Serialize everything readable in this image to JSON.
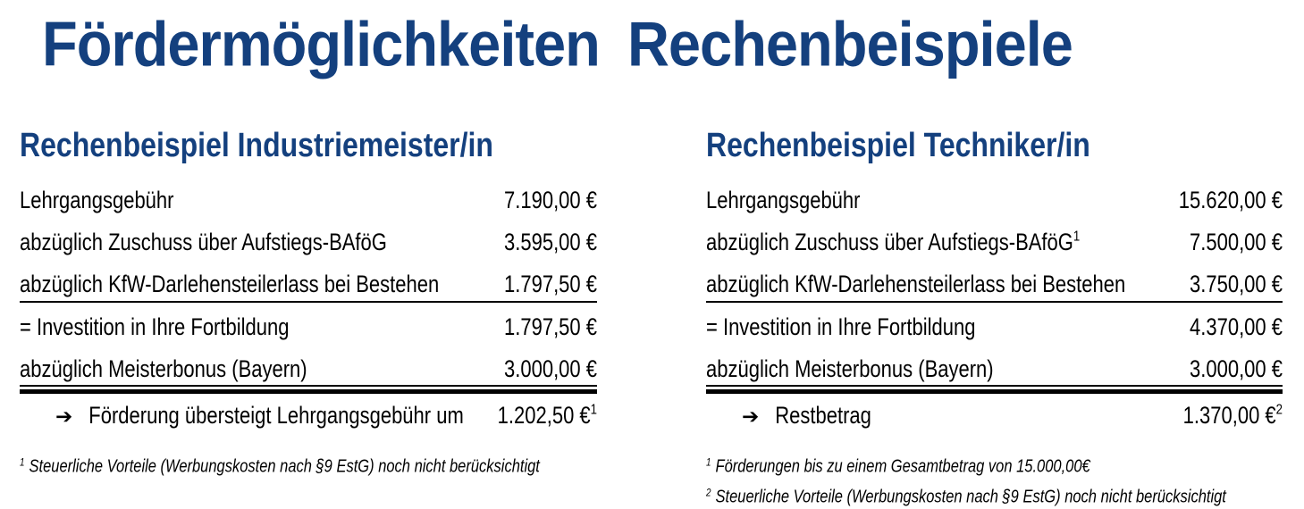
{
  "title": "Fördermöglichkeiten Rechenbeispiele",
  "colors": {
    "heading": "#14407e",
    "text": "#000000",
    "rule": "#000000",
    "background": "#ffffff"
  },
  "icons": {
    "arrow": "➔"
  },
  "examples": {
    "left": {
      "heading": "Rechenbeispiel Industriemeister/in",
      "rows": [
        {
          "label": "Lehrgangsgebühr",
          "label_sup": "",
          "value": "7.190,00 €",
          "value_sup": ""
        },
        {
          "label": "abzüglich Zuschuss über Aufstiegs-BAföG",
          "label_sup": "",
          "value": "3.595,00 €",
          "value_sup": ""
        },
        {
          "label": "abzüglich KfW-Darlehensteilerlass bei Bestehen",
          "label_sup": "",
          "value": "1.797,50 €",
          "value_sup": ""
        },
        {
          "label": "= Investition in Ihre Fortbildung",
          "label_sup": "",
          "value": "1.797,50 €",
          "value_sup": ""
        },
        {
          "label": "abzüglich Meisterbonus (Bayern)",
          "label_sup": "",
          "value": "3.000,00 €",
          "value_sup": ""
        }
      ],
      "total": {
        "label": "Förderung übersteigt Lehrgangsgebühr um",
        "value": "1.202,50 €",
        "value_sup": "1"
      },
      "footnotes": [
        {
          "sup": "1",
          "text": "Steuerliche Vorteile (Werbungskosten nach §9 EstG) noch nicht berücksichtigt"
        }
      ]
    },
    "right": {
      "heading": "Rechenbeispiel Techniker/in",
      "rows": [
        {
          "label": "Lehrgangsgebühr",
          "label_sup": "",
          "value": "15.620,00 €",
          "value_sup": ""
        },
        {
          "label": "abzüglich Zuschuss über Aufstiegs-BAföG",
          "label_sup": "1",
          "value": "7.500,00 €",
          "value_sup": ""
        },
        {
          "label": "abzüglich KfW-Darlehensteilerlass bei Bestehen",
          "label_sup": "",
          "value": "3.750,00 €",
          "value_sup": ""
        },
        {
          "label": "= Investition in Ihre Fortbildung",
          "label_sup": "",
          "value": "4.370,00 €",
          "value_sup": ""
        },
        {
          "label": "abzüglich Meisterbonus (Bayern)",
          "label_sup": "",
          "value": "3.000,00 €",
          "value_sup": ""
        }
      ],
      "total": {
        "label": "Restbetrag",
        "value": "1.370,00 €",
        "value_sup": "2"
      },
      "footnotes": [
        {
          "sup": "1",
          "text": "Förderungen bis zu einem Gesamtbetrag von 15.000,00€"
        },
        {
          "sup": "2",
          "text": "Steuerliche Vorteile (Werbungskosten nach §9 EstG) noch nicht berücksichtigt"
        }
      ]
    }
  }
}
